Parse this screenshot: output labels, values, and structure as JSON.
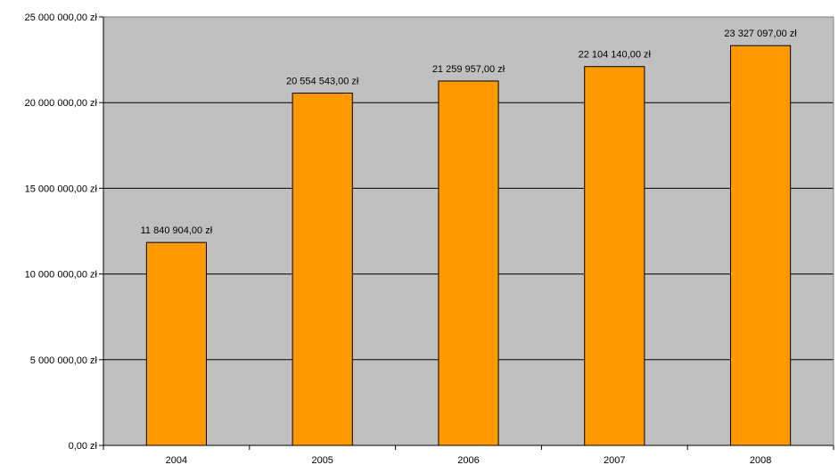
{
  "chart_data": {
    "type": "bar",
    "title": "",
    "xlabel": "",
    "ylabel": "",
    "categories": [
      "2004",
      "2005",
      "2006",
      "2007",
      "2008"
    ],
    "values": [
      11840904,
      20554543,
      21259957,
      22104140,
      23327097
    ],
    "data_labels": [
      "11 840 904,00 zł",
      "20 554 543,00 zł",
      "21 259 957,00 zł",
      "22 104 140,00 zł",
      "23 327 097,00 zł"
    ],
    "ylim": [
      0,
      25000000
    ],
    "yticks": [
      0,
      5000000,
      10000000,
      15000000,
      20000000,
      25000000
    ],
    "ytick_labels": [
      "0,00 zł",
      "5 000 000,00 zł",
      "10 000 000,00 zł",
      "15 000 000,00 zł",
      "20 000 000,00 zł",
      "25 000 000,00 zł"
    ],
    "grid": true,
    "legend": "none",
    "colors": {
      "plot_background": "#c0c0c0",
      "bar_fill": "#ff9900",
      "bar_stroke": "#000000",
      "gridline": "#000000"
    }
  }
}
